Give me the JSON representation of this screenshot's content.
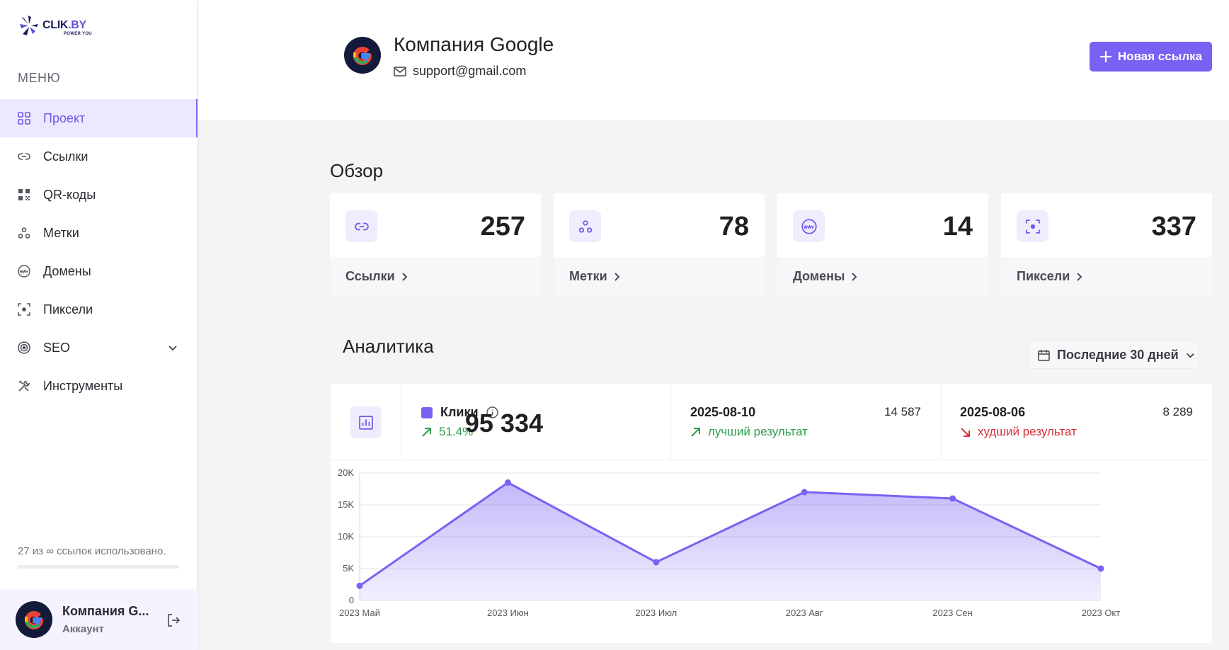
{
  "brand": {
    "name_main": "CLIK",
    "name_dot": ".BY",
    "tagline": "POWER YOU"
  },
  "sidebar": {
    "menu_title": "МЕНЮ",
    "items": [
      {
        "label": "Проект",
        "icon": "grid-icon",
        "active": true
      },
      {
        "label": "Ссылки",
        "icon": "link-icon"
      },
      {
        "label": "QR-коды",
        "icon": "qr-icon"
      },
      {
        "label": "Метки",
        "icon": "tags-icon"
      },
      {
        "label": "Домены",
        "icon": "www-icon"
      },
      {
        "label": "Пиксели",
        "icon": "pixel-icon"
      },
      {
        "label": "SEO",
        "icon": "target-icon",
        "expandable": true
      },
      {
        "label": "Инструменты",
        "icon": "tools-icon"
      }
    ],
    "usage_text": "27 из ∞ ссылок использовано.",
    "account": {
      "name": "Компания G...",
      "role": "Аккаунт"
    }
  },
  "header": {
    "company_name": "Компания Google",
    "email": "support@gmail.com",
    "new_link_label": "Новая ссылка"
  },
  "overview": {
    "title": "Обзор",
    "cards": [
      {
        "value": "257",
        "label": "Ссылки",
        "icon": "link-icon"
      },
      {
        "value": "78",
        "label": "Метки",
        "icon": "tags-icon"
      },
      {
        "value": "14",
        "label": "Домены",
        "icon": "www-icon"
      },
      {
        "value": "337",
        "label": "Пиксели",
        "icon": "pixel-icon"
      }
    ]
  },
  "analytics": {
    "title": "Аналитика",
    "range_label": "Последние 30 дней",
    "clicks_label": "Клики",
    "growth": "51.4%",
    "total": "95 334",
    "best": {
      "date": "2025-08-10",
      "value": "14 587",
      "label": "лучший результат"
    },
    "worst": {
      "date": "2025-08-06",
      "value": "8 289",
      "label": "худший результат"
    }
  },
  "colors": {
    "accent": "#7b61f3",
    "positive": "#2e9d4e",
    "negative": "#d6303b"
  },
  "chart_data": {
    "type": "area",
    "categories": [
      "2023 Май",
      "2023 Июн",
      "2023 Июл",
      "2023 Авг",
      "2023 Сен",
      "2023 Окт"
    ],
    "series": [
      {
        "values": [
          2300,
          18500,
          6000,
          17000,
          16000,
          5000
        ]
      }
    ],
    "ylim": [
      0,
      20000
    ],
    "yticks": [
      0,
      5000,
      10000,
      15000,
      20000
    ],
    "ytick_labels": [
      "0",
      "5K",
      "10K",
      "15K",
      "20K"
    ],
    "grid": true
  }
}
